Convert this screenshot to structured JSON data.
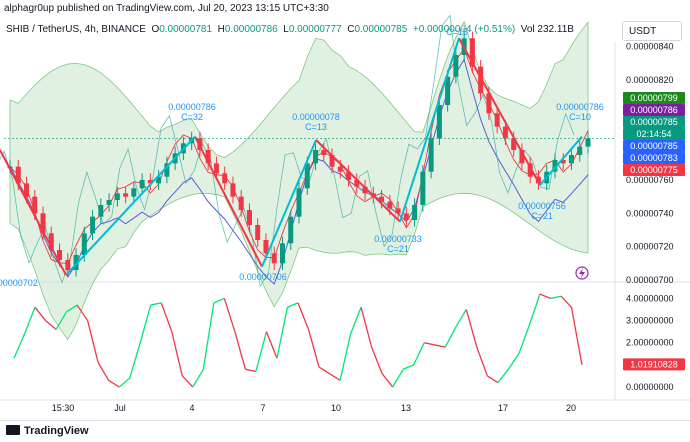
{
  "attribution": "alphagr0up published on TradingView.com, Jul 20, 2023 13:15 UTC+3:30",
  "legend": {
    "symbol": "SHIB / TetherUS, 4h, BINANCE",
    "o_label": "O",
    "o": "0.00000781",
    "h_label": "H",
    "h": "0.00000786",
    "l_label": "L",
    "l": "0.00000777",
    "c_label": "C",
    "c": "0.00000785",
    "change": "+0.00000004 (+0.51%)",
    "vol": "Vol 232.11B"
  },
  "currency_button": "USDT",
  "price_axis": [
    "0.00000840",
    "0.00000820",
    "0.00000800",
    "0.00000780",
    "0.00000760",
    "0.00000740",
    "0.00000720",
    "0.00000700"
  ],
  "price_badges": [
    {
      "text": "0.00000799",
      "color": "#1b8a1b"
    },
    {
      "text": "0.00000786",
      "color": "#7b1fa2"
    },
    {
      "text": "0.00000785",
      "color": "#089981"
    },
    {
      "text": "02:14:54",
      "color": "#089981"
    },
    {
      "text": "0.00000785",
      "color": "#2962ff"
    },
    {
      "text": "0.00000783",
      "color": "#2962ff"
    },
    {
      "text": "0.00000775",
      "color": "#f23645"
    }
  ],
  "zigzag_labels": [
    {
      "text": "0.00000702",
      "sub": ""
    },
    {
      "text": "0.00000786",
      "sub": "C=32"
    },
    {
      "text": "0.00000706",
      "sub": ""
    },
    {
      "text": "0.00000078",
      "sub": "C=13"
    },
    {
      "text": "0.00000733",
      "sub": "C=21"
    },
    {
      "text": "",
      "sub": "C=15"
    },
    {
      "text": "0.00000756",
      "sub": "C=21"
    },
    {
      "text": "0.00000786",
      "sub": "C=10"
    }
  ],
  "osc_axis": [
    "4.00000000",
    "3.00000000",
    "2.00000000",
    "0.00000000"
  ],
  "osc_badge": "1.01910828",
  "time_axis": [
    "15:30",
    "Jul",
    "4",
    "7",
    "10",
    "13",
    "17",
    "20"
  ],
  "footer_brand": "TradingView",
  "colors": {
    "up": "#089981",
    "down": "#f23645",
    "zigzag_up": "#00bcd4",
    "zigzag_down": "#f23645",
    "cloud": "#c8e6c9",
    "purple": "#5b5bd6"
  },
  "chart_data": {
    "type": "candlestick",
    "title": "SHIB / TetherUS, 4h, BINANCE",
    "ylim": [
      7e-06,
      8.5e-06
    ],
    "close_series": [
      7.68e-06,
      7.58e-06,
      7.5e-06,
      7.4e-06,
      7.28e-06,
      7.18e-06,
      7.12e-06,
      7.06e-06,
      7.15e-06,
      7.28e-06,
      7.38e-06,
      7.45e-06,
      7.48e-06,
      7.52e-06,
      7.5e-06,
      7.55e-06,
      7.6e-06,
      7.58e-06,
      7.62e-06,
      7.7e-06,
      7.76e-06,
      7.82e-06,
      7.85e-06,
      7.78e-06,
      7.7e-06,
      7.64e-06,
      7.58e-06,
      7.5e-06,
      7.42e-06,
      7.33e-06,
      7.24e-06,
      7.16e-06,
      7.1e-06,
      7.22e-06,
      7.38e-06,
      7.55e-06,
      7.7e-06,
      7.78e-06,
      7.75e-06,
      7.68e-06,
      7.65e-06,
      7.6e-06,
      7.56e-06,
      7.52e-06,
      7.5e-06,
      7.47e-06,
      7.43e-06,
      7.4e-06,
      7.36e-06,
      7.45e-06,
      7.65e-06,
      7.85e-06,
      8.05e-06,
      8.22e-06,
      8.35e-06,
      8.45e-06,
      8.28e-06,
      8.12e-06,
      8e-06,
      7.92e-06,
      7.85e-06,
      7.78e-06,
      7.7e-06,
      7.62e-06,
      7.58e-06,
      7.65e-06,
      7.72e-06,
      7.7e-06,
      7.75e-06,
      7.8e-06,
      7.85e-06
    ],
    "oscillator": [
      1.3,
      2.4,
      3.6,
      3.0,
      2.6,
      3.4,
      3.7,
      3.0,
      1.1,
      0.3,
      0.0,
      0.4,
      2.0,
      3.7,
      3.8,
      2.5,
      0.5,
      0.0,
      0.8,
      3.8,
      4.0,
      2.5,
      0.8,
      0.7,
      2.5,
      1.3,
      3.6,
      3.8,
      2.6,
      0.9,
      0.6,
      0.3,
      2.4,
      3.6,
      1.8,
      0.6,
      0.0,
      0.8,
      1.0,
      2.0,
      1.9,
      1.8,
      2.7,
      3.5,
      1.8,
      0.5,
      0.2,
      0.8,
      1.5,
      2.8,
      4.2,
      4.0,
      4.1,
      3.6,
      1.0
    ]
  }
}
